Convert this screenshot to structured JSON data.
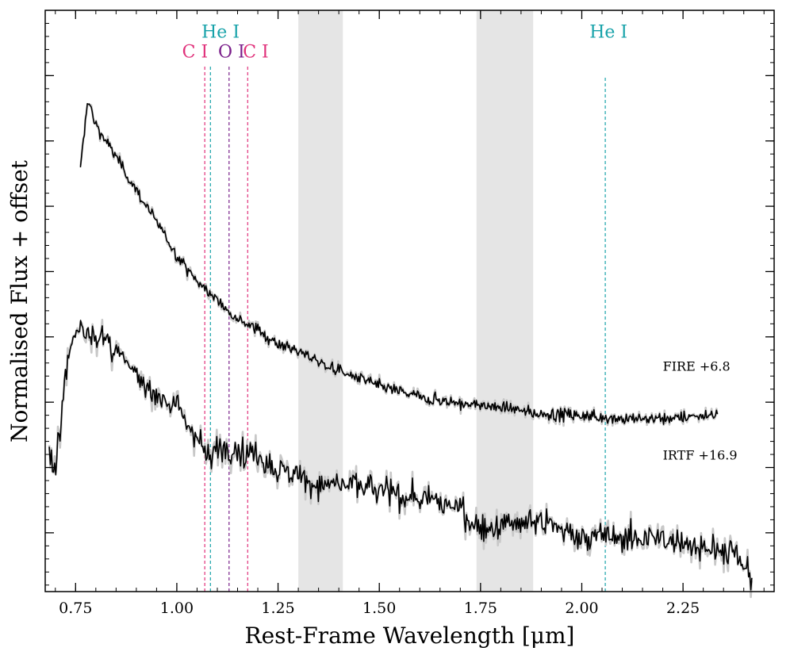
{
  "chart_data": {
    "type": "line",
    "title": "",
    "xlabel": "Rest-Frame Wavelength [μm]",
    "ylabel": "Normalised Flux + offset",
    "xlim": [
      0.675,
      2.475
    ],
    "ylim": [
      -0.1,
      8.8
    ],
    "x_ticks": [
      "0.75",
      "1.00",
      "1.25",
      "1.50",
      "1.75",
      "2.00",
      "2.25"
    ],
    "x_tick_values": [
      0.75,
      1.0,
      1.25,
      1.5,
      1.75,
      2.0,
      2.25
    ],
    "x_minor_step": 0.05,
    "y_major_ticks": [
      0.8,
      1.8,
      2.8,
      3.8,
      4.8,
      5.8,
      6.8,
      7.8
    ],
    "y_minor_step": 0.2,
    "shaded_regions": [
      {
        "name": "telluric-1",
        "x0": 1.3,
        "x1": 1.41,
        "color": "#e5e5e5"
      },
      {
        "name": "telluric-2",
        "x0": 1.74,
        "x1": 1.88,
        "color": "#e5e5e5"
      }
    ],
    "colors": {
      "carbon": "#e0307a",
      "helium": "#17a2a9",
      "oxygen": "#7a1f8a",
      "spectrum": "#000000",
      "spectrum_error": "#c8c8c8"
    },
    "line_markers": [
      {
        "label": "C I",
        "x": 1.069,
        "ymax": 7.97,
        "color_key": "carbon"
      },
      {
        "label": "He I",
        "x": 1.083,
        "ymax": 7.97,
        "color_key": "helium"
      },
      {
        "label": "O I",
        "x": 1.129,
        "ymax": 7.97,
        "color_key": "oxygen"
      },
      {
        "label": "C I",
        "x": 1.175,
        "ymax": 7.97,
        "color_key": "carbon"
      },
      {
        "label": "He I",
        "x": 2.058,
        "ymax": 7.8,
        "color_key": "helium"
      }
    ],
    "line_labels": [
      {
        "text": "C I",
        "x": 1.045,
        "y": 8.08,
        "color_key": "carbon"
      },
      {
        "text": "He I",
        "x": 1.108,
        "y": 8.38,
        "color_key": "helium"
      },
      {
        "text": "O I",
        "x": 1.135,
        "y": 8.08,
        "color_key": "oxygen"
      },
      {
        "text": "C I",
        "x": 1.195,
        "y": 8.08,
        "color_key": "carbon"
      },
      {
        "text": "He I",
        "x": 2.066,
        "y": 8.38,
        "color_key": "helium"
      }
    ],
    "series": [
      {
        "name": "FIRE",
        "label": "FIRE +6.8",
        "label_x": 2.2,
        "label_y": 3.28,
        "noise": 0.045,
        "x": [
          0.762,
          0.78,
          0.8,
          0.83,
          0.86,
          0.9,
          0.95,
          1.0,
          1.05,
          1.1,
          1.15,
          1.2,
          1.25,
          1.3,
          1.35,
          1.4,
          1.5,
          1.6,
          1.7,
          1.8,
          1.9,
          2.0,
          2.1,
          2.2,
          2.3,
          2.335
        ],
        "values": [
          6.35,
          7.45,
          7.05,
          6.75,
          6.45,
          6.05,
          5.55,
          5.05,
          4.65,
          4.35,
          4.1,
          3.9,
          3.7,
          3.58,
          3.42,
          3.28,
          3.05,
          2.88,
          2.78,
          2.72,
          2.62,
          2.6,
          2.55,
          2.55,
          2.6,
          2.62
        ]
      },
      {
        "name": "IRTF",
        "label": "IRTF +16.9",
        "label_x": 2.2,
        "label_y": 1.92,
        "noise": 0.11,
        "x": [
          0.685,
          0.7,
          0.72,
          0.74,
          0.76,
          0.8,
          0.85,
          0.9,
          0.95,
          1.0,
          1.05,
          1.08,
          1.1,
          1.15,
          1.2,
          1.25,
          1.3,
          1.35,
          1.4,
          1.5,
          1.6,
          1.7,
          1.75,
          1.8,
          1.85,
          1.9,
          2.0,
          2.1,
          2.2,
          2.3,
          2.38,
          2.42
        ],
        "values": [
          2.0,
          1.6,
          3.0,
          3.7,
          3.95,
          3.85,
          3.55,
          3.2,
          2.95,
          2.7,
          2.3,
          1.9,
          2.15,
          2.05,
          2.0,
          1.75,
          1.65,
          1.55,
          1.55,
          1.45,
          1.3,
          1.2,
          0.85,
          0.9,
          0.95,
          0.95,
          0.75,
          0.72,
          0.7,
          0.6,
          0.45,
          0.1
        ]
      }
    ]
  }
}
